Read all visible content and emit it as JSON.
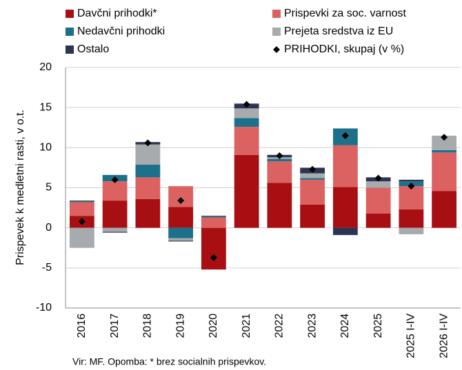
{
  "chart_data": {
    "type": "bar",
    "stacked": true,
    "ylabel": "Prispevek k medletni rasti, v o.t.",
    "source": "Vir: MF. Opomba: * brez socialnih prispevkov.",
    "categories": [
      "2016",
      "2017",
      "2018",
      "2019",
      "2020",
      "2021",
      "2022",
      "2023",
      "2024",
      "2025",
      "2025 I-IV",
      "2026 I-IV"
    ],
    "series": [
      {
        "name": "Davčni prihodki*",
        "color": "#a80f12",
        "values": [
          1.5,
          3.4,
          3.6,
          2.6,
          -5.2,
          9.1,
          5.6,
          2.9,
          5.1,
          1.8,
          2.3,
          4.6
        ]
      },
      {
        "name": "Prispevki za soc. varnost",
        "color": "#dc6262",
        "values": [
          1.7,
          2.4,
          2.7,
          2.6,
          1.3,
          3.5,
          2.7,
          3.1,
          5.2,
          3.2,
          2.9,
          4.8
        ]
      },
      {
        "name": "Nedavčni prihodki",
        "color": "#1c7089",
        "values": [
          0.1,
          0.8,
          1.6,
          -1.3,
          0.1,
          1.1,
          0.3,
          0.2,
          2.1,
          0,
          0.6,
          0.3
        ]
      },
      {
        "name": "Prejeta sredstva iz EU",
        "color": "#a8abae",
        "values": [
          -2.5,
          -0.5,
          2.5,
          -0.3,
          0,
          1.2,
          0.2,
          0.6,
          0,
          0.8,
          -0.8,
          1.8
        ]
      },
      {
        "name": "Ostalo",
        "color": "#2b3553",
        "values": [
          0.1,
          -0.1,
          0.3,
          -0.1,
          0.1,
          0.6,
          0.3,
          0.7,
          -0.9,
          0.5,
          0.2,
          0
        ]
      }
    ],
    "total": {
      "name": "PRIHODKI, skupaj (v %)",
      "color": "#000000",
      "values": [
        0.8,
        6.0,
        10.6,
        3.4,
        -3.7,
        15.4,
        9.0,
        7.3,
        11.5,
        6.2,
        5.2,
        11.3
      ]
    },
    "ylim": [
      -10,
      20
    ],
    "yticks": [
      -10,
      -5,
      0,
      5,
      10,
      15,
      20
    ],
    "grid": true
  }
}
